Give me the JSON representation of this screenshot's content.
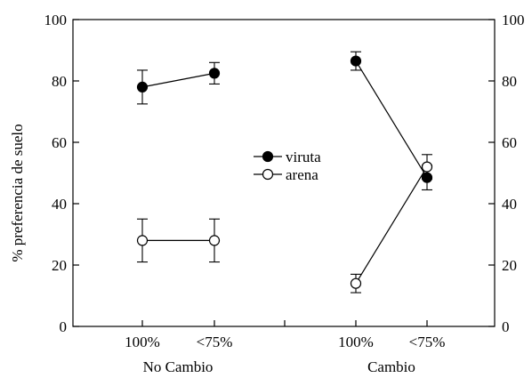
{
  "chart_data": {
    "type": "line",
    "ylabel": "% preferencia de suelo",
    "ylim": [
      0,
      100
    ],
    "yticks": [
      "0",
      "20",
      "40",
      "60",
      "80",
      "100"
    ],
    "right_axis_ticks": [
      "0",
      "20",
      "40",
      "60",
      "80",
      "100"
    ],
    "groups": [
      {
        "label": "No Cambio",
        "categories": [
          "100%",
          "<75%"
        ]
      },
      {
        "label": "Cambio",
        "categories": [
          "100%",
          "<75%"
        ]
      }
    ],
    "series": [
      {
        "name": "viruta",
        "marker": "filled-circle",
        "color": "#000000",
        "groups": [
          {
            "values": [
              78,
              82.5
            ],
            "errors": [
              5.5,
              3.5
            ]
          },
          {
            "values": [
              86.5,
              48.5
            ],
            "errors": [
              3.0,
              4.0
            ]
          }
        ]
      },
      {
        "name": "arena",
        "marker": "open-circle",
        "color": "#000000",
        "groups": [
          {
            "values": [
              28,
              28
            ],
            "errors": [
              7.0,
              7.0
            ]
          },
          {
            "values": [
              14,
              52
            ],
            "errors": [
              3.0,
              4.0
            ]
          }
        ]
      }
    ],
    "legend_position": "center"
  }
}
